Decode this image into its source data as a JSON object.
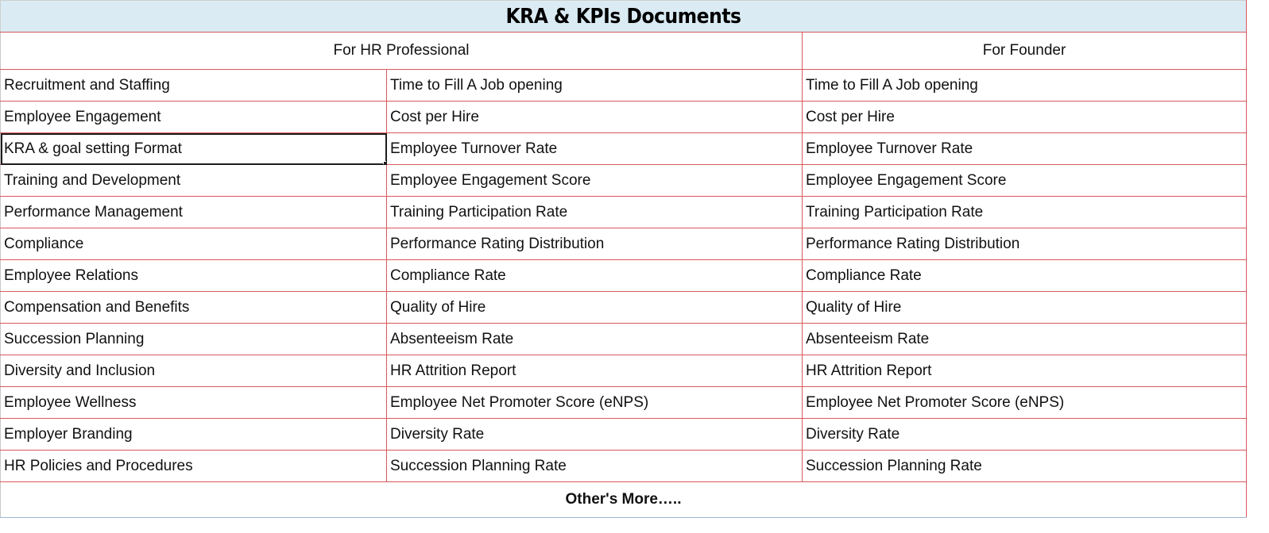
{
  "title": "KRA & KPIs Documents",
  "headers": {
    "hr_professional": "For HR Professional",
    "founder": "For Founder"
  },
  "rows": [
    {
      "area": "Recruitment and Staffing",
      "hr_kpi": "Time to Fill A Job opening",
      "founder_kpi": "Time to Fill A Job opening"
    },
    {
      "area": "Employee Engagement",
      "hr_kpi": "Cost per Hire",
      "founder_kpi": "Cost per Hire"
    },
    {
      "area": "KRA & goal setting Format",
      "hr_kpi": "Employee Turnover Rate",
      "founder_kpi": "Employee Turnover Rate"
    },
    {
      "area": "Training and Development",
      "hr_kpi": "Employee Engagement Score",
      "founder_kpi": "Employee Engagement Score"
    },
    {
      "area": "Performance Management",
      "hr_kpi": "Training Participation Rate",
      "founder_kpi": "Training Participation Rate"
    },
    {
      "area": "Compliance",
      "hr_kpi": "Performance Rating Distribution",
      "founder_kpi": "Performance Rating Distribution"
    },
    {
      "area": "Employee Relations",
      "hr_kpi": "Compliance Rate",
      "founder_kpi": "Compliance Rate"
    },
    {
      "area": "Compensation and Benefits",
      "hr_kpi": "Quality of Hire",
      "founder_kpi": "Quality of Hire"
    },
    {
      "area": "Succession Planning",
      "hr_kpi": "Absenteeism Rate",
      "founder_kpi": "Absenteeism Rate"
    },
    {
      "area": "Diversity and Inclusion",
      "hr_kpi": "HR Attrition Report",
      "founder_kpi": "HR Attrition Report"
    },
    {
      "area": "Employee Wellness",
      "hr_kpi": "Employee Net Promoter Score (eNPS)",
      "founder_kpi": "Employee Net Promoter Score (eNPS)"
    },
    {
      "area": "Employer Branding",
      "hr_kpi": "Diversity Rate",
      "founder_kpi": "Diversity Rate"
    },
    {
      "area": "HR Policies and Procedures",
      "hr_kpi": "Succession Planning Rate",
      "founder_kpi": "Succession Planning Rate"
    }
  ],
  "footer": "Other's More…..",
  "selected_cell": "KRA & goal setting Format"
}
